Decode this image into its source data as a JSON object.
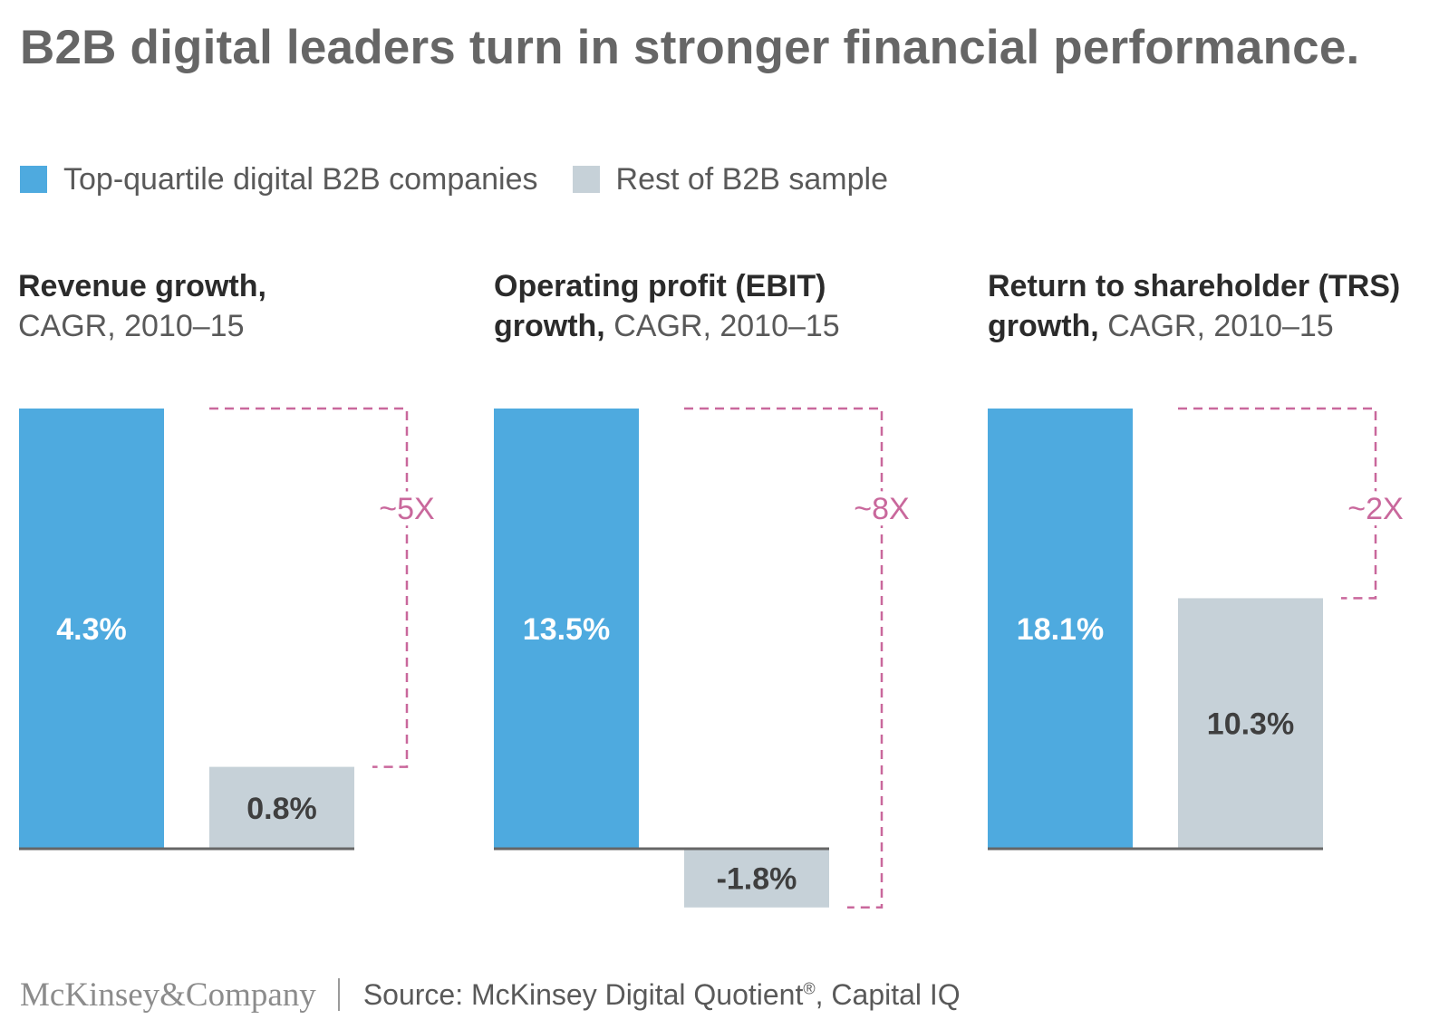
{
  "title": "B2B digital leaders turn in stronger financial performance.",
  "legend": {
    "items": [
      {
        "label": "Top-quartile digital B2B companies",
        "color": "#4eaadf"
      },
      {
        "label": "Rest of B2B sample",
        "color": "#c6d1d8"
      }
    ]
  },
  "colors": {
    "top": "#4eaadf",
    "rest": "#c6d1d8",
    "bracket": "#c9689c",
    "axis": "#666666",
    "label_light": "#ffffff",
    "label_dark": "#3f3f3f"
  },
  "chart_titles": [
    {
      "line1_bold": "Revenue growth,",
      "line1_rest": "",
      "line2_bold": "",
      "line2_rest": "CAGR, 2010–15"
    },
    {
      "line1_bold": "Operating profit (EBIT)",
      "line1_rest": "",
      "line2_bold": "growth,",
      "line2_rest": " CAGR, 2010–15"
    },
    {
      "line1_bold": "Return to shareholder (TRS)",
      "line1_rest": "",
      "line2_bold": "growth,",
      "line2_rest": " CAGR, 2010–15"
    }
  ],
  "chart_data": [
    {
      "type": "bar",
      "title": "Revenue growth, CAGR, 2010–15",
      "categories": [
        "Top-quartile digital B2B companies",
        "Rest of B2B sample"
      ],
      "values": [
        4.3,
        0.8
      ],
      "labels": [
        "4.3%",
        "0.8%"
      ],
      "multiplier": "~5X"
    },
    {
      "type": "bar",
      "title": "Operating profit (EBIT) growth, CAGR, 2010–15",
      "categories": [
        "Top-quartile digital B2B companies",
        "Rest of B2B sample"
      ],
      "values": [
        13.5,
        -1.8
      ],
      "labels": [
        "13.5%",
        "-1.8%"
      ],
      "multiplier": "~8X"
    },
    {
      "type": "bar",
      "title": "Return to shareholder (TRS) growth, CAGR, 2010–15",
      "categories": [
        "Top-quartile digital B2B companies",
        "Rest of B2B sample"
      ],
      "values": [
        18.1,
        10.3
      ],
      "labels": [
        "18.1%",
        "10.3%"
      ],
      "multiplier": "~2X"
    }
  ],
  "footer": {
    "logo": "McKinsey&Company",
    "source_prefix": "Source: McKinsey Digital Quotient",
    "source_sup": "®",
    "source_suffix": ", Capital IQ"
  }
}
